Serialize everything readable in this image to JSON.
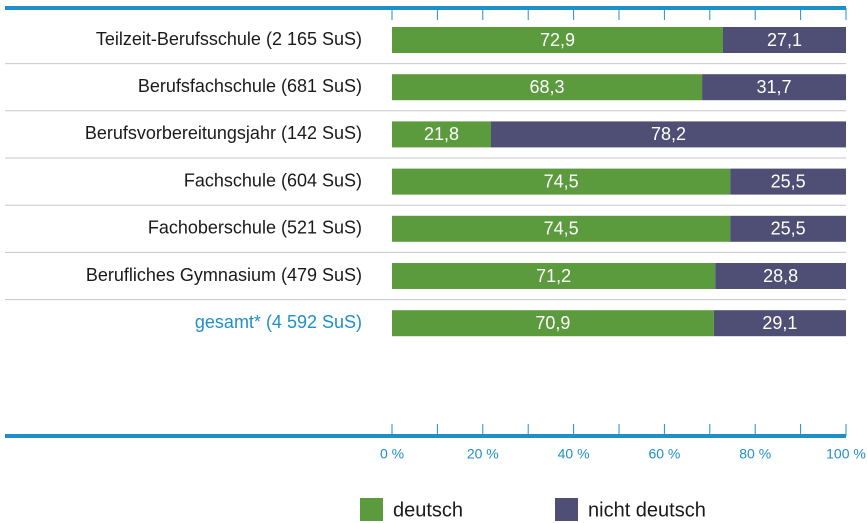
{
  "chart_data": {
    "type": "stacked-bar-horizontal",
    "categories": [
      "Teilzeit-Berufsschule (2 165 SuS)",
      "Berufsfachschule (681 SuS)",
      "Berufsvorbereitungsjahr (142 SuS)",
      "Fachschule (604 SuS)",
      "Fachoberschule (521 SuS)",
      "Berufliches Gymnasium (479 SuS)",
      "gesamt* (4 592 SuS)"
    ],
    "series": [
      {
        "name": "deutsch",
        "color": "#5b9a3d",
        "values": [
          72.9,
          68.3,
          21.8,
          74.5,
          74.5,
          71.2,
          70.9
        ],
        "value_labels": [
          "72,9",
          "68,3",
          "21,8",
          "74,5",
          "74,5",
          "71,2",
          "70,9"
        ]
      },
      {
        "name": "nicht deutsch",
        "color": "#4f4e74",
        "values": [
          27.1,
          31.7,
          78.2,
          25.5,
          25.5,
          28.8,
          29.1
        ],
        "value_labels": [
          "27,1",
          "31,7",
          "78,2",
          "25,5",
          "25,5",
          "28,8",
          "29,1"
        ]
      }
    ],
    "xlim": [
      0,
      100
    ],
    "xticks": [
      {
        "value": 0,
        "label": "0 %"
      },
      {
        "value": 20,
        "label": "20 %"
      },
      {
        "value": 40,
        "label": "40 %"
      },
      {
        "value": 60,
        "label": "60 %"
      },
      {
        "value": 80,
        "label": "80 %"
      },
      {
        "value": 100,
        "label": "100 %"
      }
    ],
    "xminorticks": [
      10,
      30,
      50,
      70,
      90
    ],
    "legend": "bottom"
  }
}
